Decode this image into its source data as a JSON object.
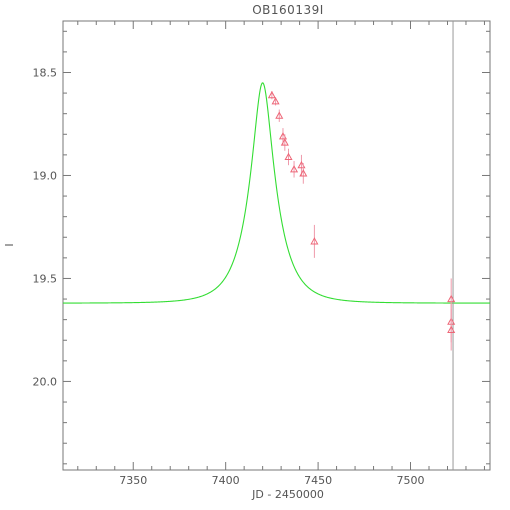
{
  "chart_data": {
    "type": "scatter",
    "title": "OB160139I",
    "xlabel": "JD - 2450000",
    "ylabel": "I",
    "xlim": [
      7312,
      7543
    ],
    "ylim": [
      20.43,
      18.25
    ],
    "y_inverted": true,
    "xticks": [
      7350,
      7400,
      7450,
      7500
    ],
    "xtick_labels": [
      "7350",
      "7400",
      "7450",
      "7500"
    ],
    "yticks": [
      18.5,
      19.0,
      19.5,
      20.0
    ],
    "ytick_labels": [
      "18.5",
      "19.0",
      "19.5",
      "20.0"
    ],
    "grid": false,
    "colors": {
      "model": "#33dd33",
      "data": "#ee6677",
      "errorbar": "#ee99aa",
      "vline": "#999999",
      "axes": "#777777",
      "text": "#555555"
    },
    "series": [
      {
        "type": "line",
        "model": "pspl_lightcurve",
        "t0": 7420,
        "tE": 14.2,
        "u0": 0.327,
        "baseline": 19.62,
        "peak": 18.55
      },
      {
        "type": "scatter",
        "marker": "triangle",
        "x": [
          7425,
          7427,
          7429,
          7431,
          7432,
          7434,
          7437,
          7441,
          7442,
          7448,
          7522,
          7522,
          7522
        ],
        "y": [
          18.61,
          18.64,
          18.71,
          18.81,
          18.84,
          18.91,
          18.97,
          18.95,
          18.99,
          19.32,
          19.6,
          19.71,
          19.75
        ],
        "yerr": [
          0.02,
          0.02,
          0.03,
          0.04,
          0.04,
          0.04,
          0.04,
          0.05,
          0.05,
          0.08,
          0.1,
          0.1,
          0.1
        ]
      }
    ],
    "vline_x": 7523
  }
}
